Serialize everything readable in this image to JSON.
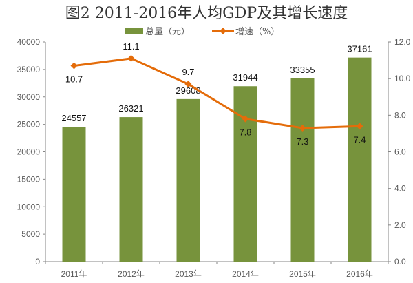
{
  "chart_data": {
    "type": "bar+line",
    "title": "图2    2011-2016年人均GDP及其增长速度",
    "categories": [
      "2011年",
      "2012年",
      "2013年",
      "2014年",
      "2015年",
      "2016年"
    ],
    "series": [
      {
        "name": "总量（元）",
        "type": "bar",
        "axis": "left",
        "values": [
          24557,
          26321,
          29608,
          31944,
          33355,
          37161
        ]
      },
      {
        "name": "增速（%）",
        "type": "line",
        "axis": "right",
        "values": [
          10.7,
          11.1,
          9.7,
          7.8,
          7.3,
          7.4
        ]
      }
    ],
    "left_axis": {
      "ylim": [
        0,
        40000
      ],
      "ticks": [
        "0",
        "5000",
        "10000",
        "15000",
        "20000",
        "25000",
        "30000",
        "35000",
        "40000"
      ]
    },
    "right_axis": {
      "ylim": [
        0,
        12
      ],
      "ticks": [
        "0.0",
        "2.0",
        "4.0",
        "6.0",
        "8.0",
        "10.0",
        "12.0"
      ]
    },
    "legend_position": "top",
    "grid": false,
    "colors": {
      "bar": "#77933C",
      "line": "#E46C0A"
    }
  }
}
